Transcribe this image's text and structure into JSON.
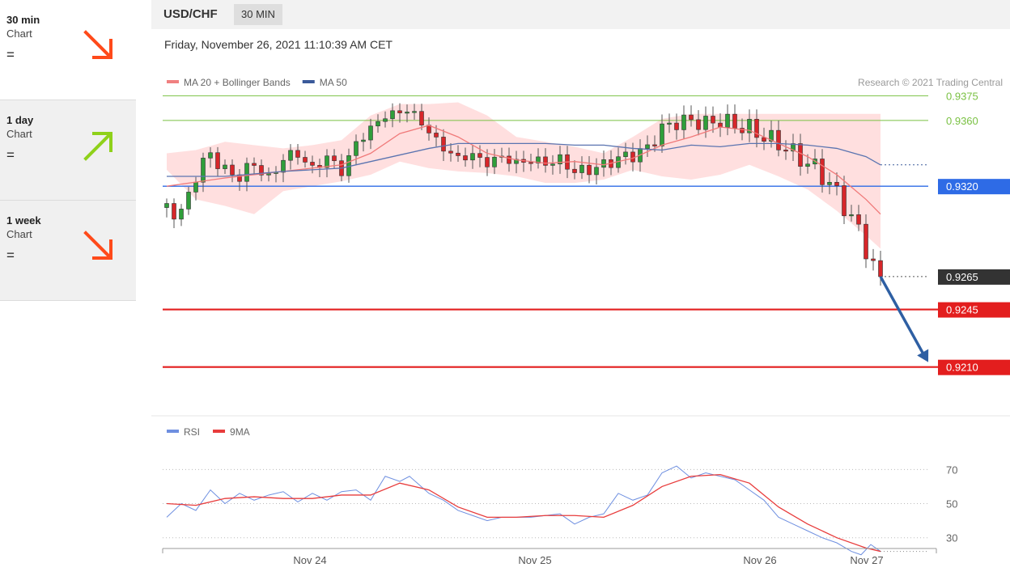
{
  "sidebar": {
    "items": [
      {
        "title": "30 min",
        "subtitle": "Chart",
        "status": "=",
        "direction": "down",
        "color": "#ff4a1a"
      },
      {
        "title": "1 day",
        "subtitle": "Chart",
        "status": "=",
        "direction": "up",
        "color": "#8fd11a"
      },
      {
        "title": "1 week",
        "subtitle": "Chart",
        "status": "=",
        "direction": "down",
        "color": "#ff4a1a"
      }
    ]
  },
  "header": {
    "pair": "USD/CHF",
    "timeframe": "30 MIN",
    "datetime": "Friday, November 26, 2021 11:10:39 AM CET"
  },
  "chart_data": [
    {
      "type": "candlestick",
      "legend": [
        {
          "name": "MA 20 + Bollinger Bands",
          "color": "#f08080"
        },
        {
          "name": "MA 50",
          "color": "#3a5a9a"
        }
      ],
      "credit": "Research © 2021 Trading Central",
      "ylim": [
        0.92,
        0.9388
      ],
      "x_ticks": [
        "Nov 24",
        "Nov 25",
        "Nov 26",
        "Nov 27"
      ],
      "levels": [
        {
          "label": "0.9375",
          "value": 0.9375,
          "kind": "target",
          "color": "#7ac143"
        },
        {
          "label": "0.9360",
          "value": 0.936,
          "kind": "target",
          "color": "#7ac143"
        },
        {
          "label": "0.9320",
          "value": 0.932,
          "kind": "pivot",
          "color": "#2e6be6"
        },
        {
          "label": "0.9265",
          "value": 0.9265,
          "kind": "last",
          "color": "#333333"
        },
        {
          "label": "0.9245",
          "value": 0.9245,
          "kind": "support",
          "color": "#e31e1e"
        },
        {
          "label": "0.9210",
          "value": 0.921,
          "kind": "support",
          "color": "#e31e1e"
        }
      ],
      "close_path": [
        [
          0,
          0.9307
        ],
        [
          6,
          0.9303
        ],
        [
          12,
          0.9327
        ],
        [
          18,
          0.934
        ],
        [
          24,
          0.9329
        ],
        [
          30,
          0.9326
        ],
        [
          36,
          0.9334
        ],
        [
          42,
          0.9324
        ],
        [
          48,
          0.9337
        ],
        [
          54,
          0.934
        ],
        [
          60,
          0.933
        ],
        [
          66,
          0.9338
        ],
        [
          72,
          0.9329
        ],
        [
          78,
          0.9346
        ],
        [
          84,
          0.9355
        ],
        [
          90,
          0.9363
        ],
        [
          96,
          0.9365
        ],
        [
          100,
          0.9367
        ],
        [
          104,
          0.936
        ],
        [
          108,
          0.9353
        ],
        [
          114,
          0.9343
        ],
        [
          120,
          0.9337
        ],
        [
          126,
          0.9339
        ],
        [
          132,
          0.9334
        ],
        [
          138,
          0.9338
        ],
        [
          144,
          0.9334
        ],
        [
          150,
          0.9336
        ],
        [
          156,
          0.9334
        ],
        [
          162,
          0.9336
        ],
        [
          168,
          0.9329
        ],
        [
          174,
          0.933
        ],
        [
          180,
          0.9333
        ],
        [
          186,
          0.9337
        ],
        [
          192,
          0.9339
        ],
        [
          198,
          0.9343
        ],
        [
          204,
          0.9355
        ],
        [
          210,
          0.9359
        ],
        [
          216,
          0.936
        ],
        [
          222,
          0.9358
        ],
        [
          228,
          0.936
        ],
        [
          234,
          0.9357
        ],
        [
          240,
          0.9355
        ],
        [
          246,
          0.935
        ],
        [
          252,
          0.9346
        ],
        [
          256,
          0.9342
        ],
        [
          262,
          0.9336
        ],
        [
          268,
          0.933
        ],
        [
          274,
          0.932
        ],
        [
          280,
          0.9306
        ],
        [
          286,
          0.929
        ],
        [
          290,
          0.9275
        ],
        [
          292,
          0.9268
        ],
        [
          294,
          0.9265
        ]
      ],
      "bollinger_upper_path": [
        [
          0,
          0.934
        ],
        [
          12,
          0.9342
        ],
        [
          24,
          0.9347
        ],
        [
          36,
          0.9345
        ],
        [
          48,
          0.9343
        ],
        [
          60,
          0.9345
        ],
        [
          72,
          0.9348
        ],
        [
          84,
          0.9363
        ],
        [
          96,
          0.937
        ],
        [
          108,
          0.937
        ],
        [
          120,
          0.9371
        ],
        [
          132,
          0.9363
        ],
        [
          144,
          0.935
        ],
        [
          156,
          0.9347
        ],
        [
          168,
          0.9344
        ],
        [
          180,
          0.934
        ],
        [
          192,
          0.935
        ],
        [
          204,
          0.9361
        ],
        [
          216,
          0.9364
        ],
        [
          228,
          0.9364
        ],
        [
          240,
          0.9364
        ],
        [
          252,
          0.9364
        ],
        [
          264,
          0.9364
        ],
        [
          276,
          0.9364
        ],
        [
          288,
          0.9364
        ],
        [
          294,
          0.9364
        ]
      ],
      "bollinger_lower_path": [
        [
          0,
          0.933
        ],
        [
          12,
          0.9312
        ],
        [
          24,
          0.9308
        ],
        [
          36,
          0.9303
        ],
        [
          48,
          0.9317
        ],
        [
          60,
          0.932
        ],
        [
          72,
          0.9323
        ],
        [
          84,
          0.9327
        ],
        [
          96,
          0.9335
        ],
        [
          108,
          0.9331
        ],
        [
          120,
          0.9329
        ],
        [
          132,
          0.9328
        ],
        [
          144,
          0.9326
        ],
        [
          156,
          0.9322
        ],
        [
          168,
          0.9322
        ],
        [
          180,
          0.9324
        ],
        [
          192,
          0.933
        ],
        [
          204,
          0.9326
        ],
        [
          216,
          0.9324
        ],
        [
          228,
          0.9327
        ],
        [
          240,
          0.9333
        ],
        [
          252,
          0.9326
        ],
        [
          264,
          0.9318
        ],
        [
          276,
          0.9305
        ],
        [
          288,
          0.929
        ],
        [
          294,
          0.9282
        ]
      ],
      "ma20_path": [
        [
          0,
          0.932
        ],
        [
          24,
          0.9325
        ],
        [
          48,
          0.9329
        ],
        [
          72,
          0.9333
        ],
        [
          84,
          0.934
        ],
        [
          96,
          0.9352
        ],
        [
          108,
          0.9357
        ],
        [
          120,
          0.935
        ],
        [
          132,
          0.934
        ],
        [
          144,
          0.9336
        ],
        [
          156,
          0.9334
        ],
        [
          168,
          0.9335
        ],
        [
          180,
          0.9333
        ],
        [
          192,
          0.9337
        ],
        [
          204,
          0.9345
        ],
        [
          216,
          0.935
        ],
        [
          228,
          0.9356
        ],
        [
          240,
          0.9354
        ],
        [
          252,
          0.9346
        ],
        [
          264,
          0.9338
        ],
        [
          276,
          0.9327
        ],
        [
          288,
          0.9312
        ],
        [
          294,
          0.9303
        ]
      ],
      "ma50_path": [
        [
          0,
          0.9326
        ],
        [
          24,
          0.9326
        ],
        [
          48,
          0.9329
        ],
        [
          72,
          0.9331
        ],
        [
          96,
          0.9339
        ],
        [
          108,
          0.9343
        ],
        [
          120,
          0.9346
        ],
        [
          132,
          0.9346
        ],
        [
          144,
          0.9346
        ],
        [
          156,
          0.9346
        ],
        [
          168,
          0.9345
        ],
        [
          180,
          0.9345
        ],
        [
          192,
          0.9343
        ],
        [
          204,
          0.9342
        ],
        [
          216,
          0.9345
        ],
        [
          228,
          0.9344
        ],
        [
          240,
          0.9346
        ],
        [
          252,
          0.9346
        ],
        [
          264,
          0.9345
        ],
        [
          276,
          0.9343
        ],
        [
          288,
          0.9338
        ],
        [
          294,
          0.9333
        ]
      ],
      "forecast_arrow": [
        [
          294,
          0.9265
        ],
        [
          320,
          0.921
        ]
      ]
    },
    {
      "type": "line",
      "legend": [
        {
          "name": "RSI",
          "color": "#6e8fe0"
        },
        {
          "name": "9MA",
          "color": "#e83c3c"
        }
      ],
      "ylim": [
        18,
        82
      ],
      "y_ticks": [
        30,
        50,
        70
      ],
      "last_value": 22,
      "series": [
        {
          "name": "RSI",
          "points": [
            [
              0,
              42
            ],
            [
              6,
              50
            ],
            [
              12,
              46
            ],
            [
              18,
              58
            ],
            [
              24,
              50
            ],
            [
              30,
              56
            ],
            [
              36,
              52
            ],
            [
              42,
              55
            ],
            [
              48,
              57
            ],
            [
              54,
              51
            ],
            [
              60,
              56
            ],
            [
              66,
              52
            ],
            [
              72,
              57
            ],
            [
              78,
              58
            ],
            [
              84,
              52
            ],
            [
              90,
              66
            ],
            [
              96,
              63
            ],
            [
              100,
              66
            ],
            [
              104,
              61
            ],
            [
              108,
              56
            ],
            [
              114,
              52
            ],
            [
              120,
              46
            ],
            [
              126,
              43
            ],
            [
              132,
              40
            ],
            [
              138,
              42
            ],
            [
              144,
              42
            ],
            [
              150,
              42
            ],
            [
              156,
              43
            ],
            [
              162,
              44
            ],
            [
              168,
              38
            ],
            [
              174,
              42
            ],
            [
              180,
              44
            ],
            [
              186,
              56
            ],
            [
              192,
              52
            ],
            [
              198,
              55
            ],
            [
              204,
              68
            ],
            [
              210,
              72
            ],
            [
              216,
              65
            ],
            [
              222,
              68
            ],
            [
              228,
              66
            ],
            [
              234,
              64
            ],
            [
              240,
              58
            ],
            [
              246,
              52
            ],
            [
              252,
              42
            ],
            [
              258,
              38
            ],
            [
              264,
              34
            ],
            [
              270,
              30
            ],
            [
              276,
              27
            ],
            [
              282,
              22
            ],
            [
              286,
              20
            ],
            [
              290,
              26
            ],
            [
              294,
              22
            ]
          ]
        },
        {
          "name": "9MA",
          "points": [
            [
              0,
              50
            ],
            [
              12,
              49
            ],
            [
              24,
              53
            ],
            [
              36,
              54
            ],
            [
              48,
              53
            ],
            [
              60,
              53
            ],
            [
              72,
              55
            ],
            [
              84,
              55
            ],
            [
              96,
              62
            ],
            [
              108,
              58
            ],
            [
              120,
              48
            ],
            [
              132,
              42
            ],
            [
              144,
              42
            ],
            [
              156,
              43
            ],
            [
              168,
              43
            ],
            [
              180,
              42
            ],
            [
              192,
              49
            ],
            [
              204,
              60
            ],
            [
              216,
              66
            ],
            [
              228,
              67
            ],
            [
              240,
              62
            ],
            [
              252,
              48
            ],
            [
              264,
              38
            ],
            [
              276,
              30
            ],
            [
              288,
              24
            ],
            [
              294,
              22
            ]
          ]
        }
      ]
    }
  ]
}
